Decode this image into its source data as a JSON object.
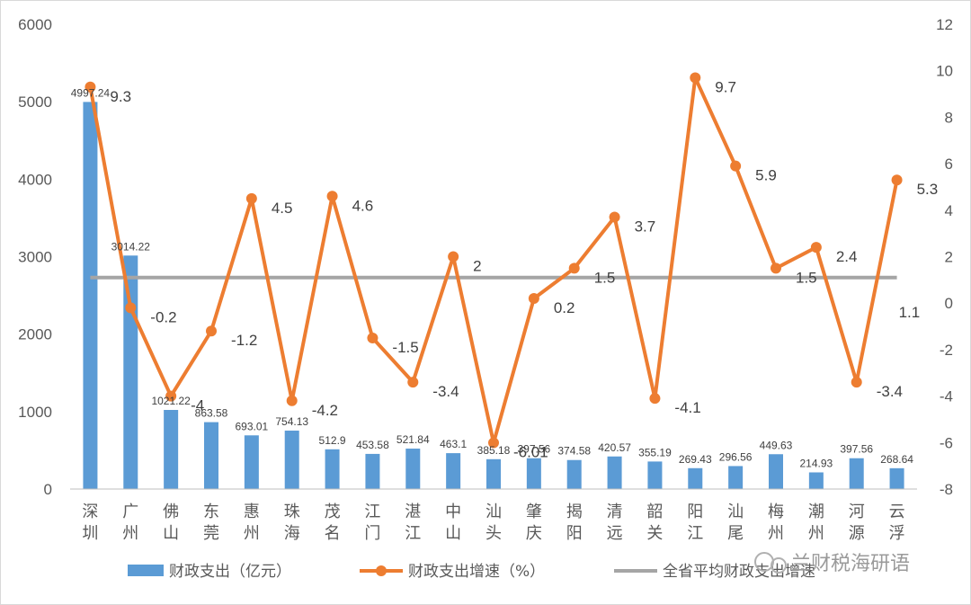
{
  "watermark": "兰财税海研语",
  "colors": {
    "bar": "#5B9BD5",
    "line": "#ED7D31",
    "avg": "#A5A5A5",
    "axis_text": "#595959"
  },
  "chart_data": {
    "type": "bar",
    "categories": [
      "深圳",
      "广州",
      "佛山",
      "东莞",
      "惠州",
      "珠海",
      "茂名",
      "江门",
      "湛江",
      "中山",
      "汕头",
      "肇庆",
      "揭阳",
      "清远",
      "韶关",
      "阳江",
      "汕尾",
      "梅州",
      "潮州",
      "河源",
      "云浮"
    ],
    "series": [
      {
        "name": "财政支出（亿元）",
        "type": "bar",
        "axis": "left",
        "values": [
          4997.24,
          3014.22,
          1021.22,
          863.58,
          693.01,
          754.13,
          512.9,
          453.58,
          521.84,
          463.1,
          385.18,
          397.56,
          374.58,
          420.57,
          355.19,
          269.43,
          296.56,
          449.63,
          214.93,
          397.56,
          268.64
        ],
        "labels": [
          "4997.24",
          "3014.22",
          "1021.22",
          "863.58",
          "693.01",
          "754.13",
          "512.9",
          "453.58",
          "521.84",
          "463.1",
          "385.18",
          "397.56",
          "374.58",
          "420.57",
          "355.19",
          "269.43",
          "296.56",
          "449.63",
          "214.93",
          "397.56",
          "268.64"
        ]
      },
      {
        "name": "财政支出增速（%）",
        "type": "line",
        "axis": "right",
        "values": [
          9.3,
          -0.2,
          -4,
          -1.2,
          4.5,
          -4.2,
          4.6,
          -1.5,
          -3.4,
          2,
          -6.01,
          0.2,
          1.5,
          3.7,
          -4.1,
          9.7,
          5.9,
          1.5,
          2.4,
          -3.4,
          5.3
        ],
        "labels": [
          "9.3",
          "-0.2",
          "-4",
          "-1.2",
          "4.5",
          "-4.2",
          "4.6",
          "-1.5",
          "-3.4",
          "2",
          "-6.01",
          "0.2",
          "1.5",
          "3.7",
          "-4.1",
          "9.7",
          "5.9",
          "1.5",
          "2.4",
          "-3.4",
          "5.3"
        ]
      },
      {
        "name": "全省平均财政支出增速",
        "type": "line",
        "axis": "right",
        "values": [
          1.1,
          1.1,
          1.1,
          1.1,
          1.1,
          1.1,
          1.1,
          1.1,
          1.1,
          1.1,
          1.1,
          1.1,
          1.1,
          1.1,
          1.1,
          1.1,
          1.1,
          1.1,
          1.1,
          1.1,
          1.1
        ],
        "end_label": "1.1"
      }
    ],
    "y_left": {
      "min": 0,
      "max": 6000,
      "ticks": [
        "0",
        "1000",
        "2000",
        "3000",
        "4000",
        "5000",
        "6000"
      ]
    },
    "y_right": {
      "min": -8,
      "max": 12,
      "ticks": [
        "-8",
        "-6",
        "-4",
        "-2",
        "0",
        "2",
        "4",
        "6",
        "8",
        "10",
        "12"
      ]
    },
    "grid": false,
    "legend_position": "bottom"
  }
}
